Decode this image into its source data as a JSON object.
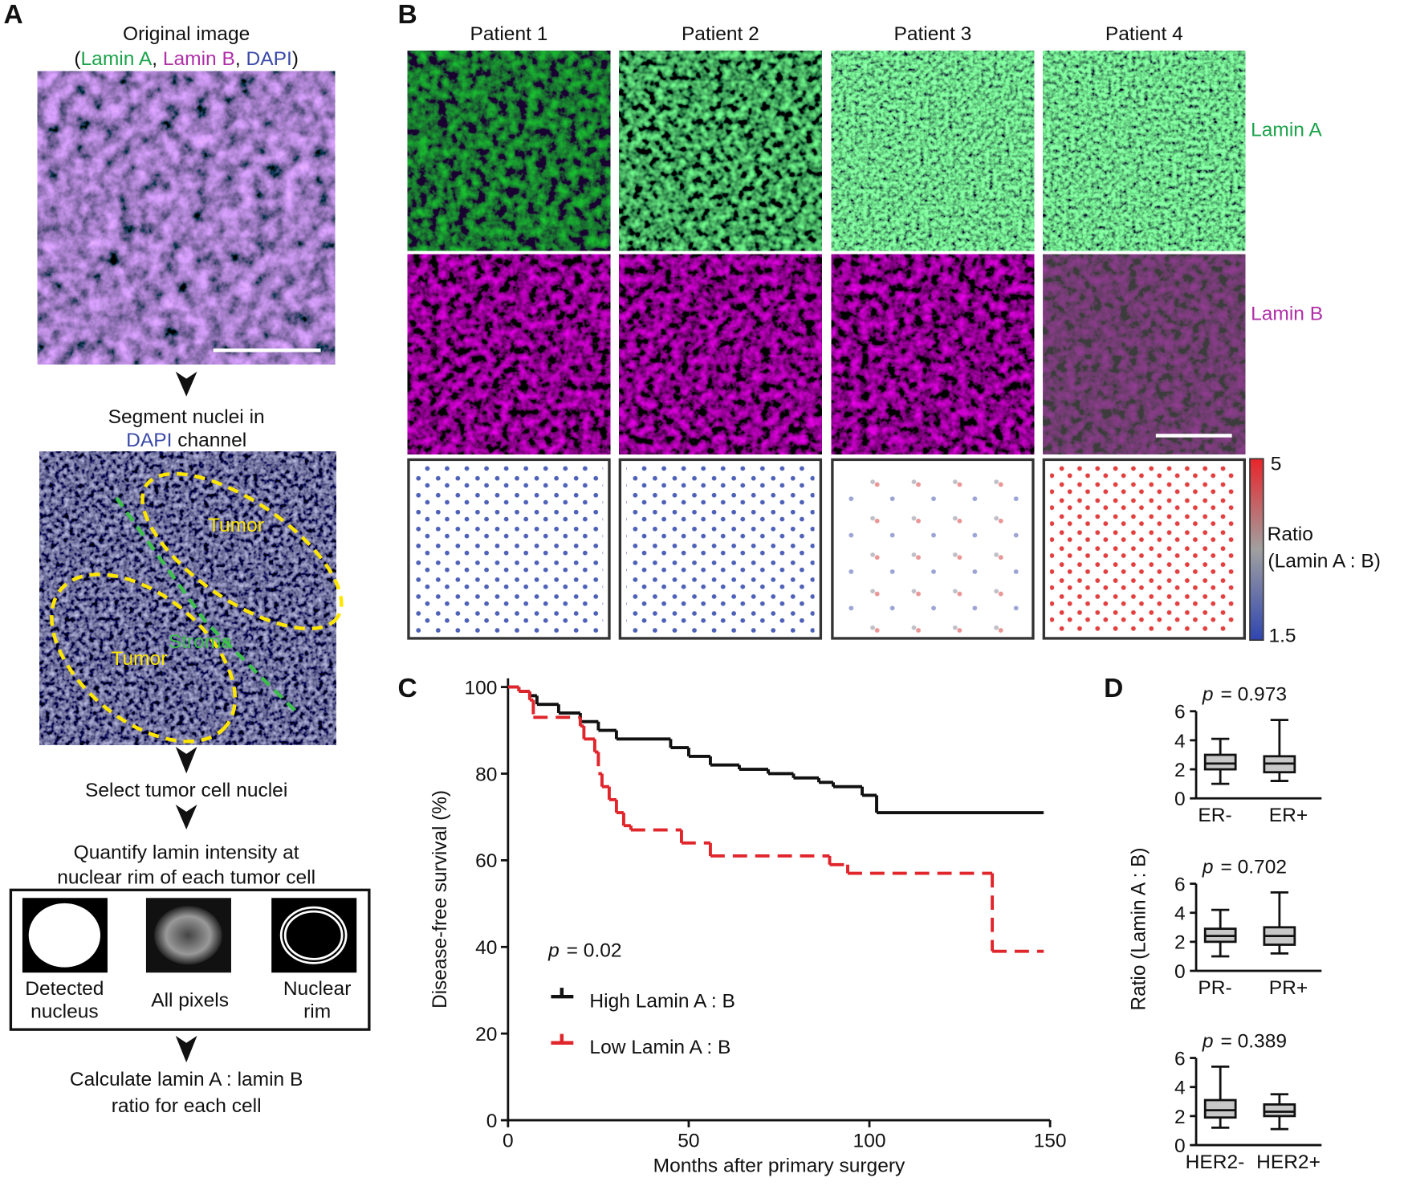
{
  "panel_a": {
    "label": "A",
    "step1": "Original image",
    "step1_channels": [
      {
        "text": "(",
        "color": "#111111"
      },
      {
        "text": "Lamin A",
        "color": "#1aa34a"
      },
      {
        "text": ", ",
        "color": "#111111"
      },
      {
        "text": "Lamin B",
        "color": "#b02fa8"
      },
      {
        "text": ", ",
        "color": "#111111"
      },
      {
        "text": "DAPI",
        "color": "#3a49a8"
      },
      {
        "text": ")",
        "color": "#111111"
      }
    ],
    "step2_line1": "Segment nuclei in",
    "step2_line2": [
      {
        "text": "DAPI",
        "color": "#3a49a8"
      },
      {
        "text": " channel",
        "color": "#111111"
      }
    ],
    "region_labels": {
      "tumor_upper": "Tumor",
      "stroma": "Stroma",
      "tumor_lower": "Tumor"
    },
    "step3": "Select tumor cell nuclei",
    "step4_line1": "Quantify lamin intensity at",
    "step4_line2": "nuclear rim of each tumor cell",
    "examples": [
      {
        "line1": "Detected",
        "line2": "nucleus"
      },
      {
        "line1": "All pixels"
      },
      {
        "line1": "Nuclear",
        "line2": "rim"
      }
    ],
    "step5_line1": "Calculate lamin A : lamin B",
    "step5_line2": "ratio for each cell"
  },
  "panel_b": {
    "label": "B",
    "patients": [
      "Patient 1",
      "Patient 2",
      "Patient 3",
      "Patient 4"
    ],
    "row_labels": [
      {
        "text": "Lamin A",
        "color": "#1aa34a"
      },
      {
        "text": "Lamin B",
        "color": "#b02fa8"
      }
    ],
    "colorbar": {
      "title": "Ratio",
      "subtitle": "(Lamin A : B)",
      "max_label": "5",
      "min_label": "1.5"
    }
  },
  "panel_c": {
    "label": "C"
  },
  "panel_d": {
    "label": "D",
    "ylabel": "Ratio (Lamin A : B)"
  },
  "chart_data": [
    {
      "type": "step",
      "xlabel": "Months after primary surgery",
      "ylabel": "Disease-free survival (%)",
      "xlim": [
        0,
        150
      ],
      "xticks": [
        0,
        50,
        100,
        150
      ],
      "ylim": [
        0,
        102
      ],
      "yticks": [
        0,
        20,
        40,
        60,
        80,
        100
      ],
      "annotation_italic": "p",
      "annotation": "= 0.02",
      "series": [
        {
          "name": "High Lamin A : B",
          "color": "#111111",
          "line_style": "solid",
          "x": [
            0,
            3,
            6,
            8,
            14,
            20,
            25,
            30,
            45,
            50,
            56,
            64,
            72,
            79,
            86,
            90,
            98,
            102,
            148
          ],
          "values": [
            100,
            99,
            98,
            96,
            94,
            92,
            90,
            88,
            86,
            84,
            82,
            81,
            80,
            79,
            78,
            77,
            75,
            71,
            71
          ]
        },
        {
          "name": "Low Lamin A : B",
          "color": "#e0252b",
          "line_style": "dashed",
          "x": [
            0,
            3,
            6,
            7,
            20,
            21,
            24,
            25,
            26,
            28,
            30,
            32,
            34,
            48,
            56,
            88,
            89,
            94,
            133,
            134,
            148
          ],
          "values": [
            100,
            99,
            97,
            93,
            91,
            88,
            85,
            80,
            77,
            74,
            71,
            68,
            67,
            64,
            61,
            61,
            59,
            57,
            57,
            39,
            39
          ]
        }
      ]
    },
    {
      "type": "box",
      "color": "#c8c8c8",
      "categories": [
        "ER-",
        "ER+"
      ],
      "ylim": [
        0,
        6
      ],
      "yticks": [
        0,
        2,
        4,
        6
      ],
      "annotation_italic": "p",
      "annotation": "= 0.973",
      "boxes": [
        {
          "min": 1.0,
          "q1": 2.0,
          "median": 2.4,
          "q3": 3.0,
          "max": 4.1
        },
        {
          "min": 1.2,
          "q1": 1.8,
          "median": 2.4,
          "q3": 2.9,
          "max": 5.4
        }
      ]
    },
    {
      "type": "box",
      "color": "#c8c8c8",
      "categories": [
        "PR-",
        "PR+"
      ],
      "ylim": [
        0,
        6
      ],
      "yticks": [
        0,
        2,
        4,
        6
      ],
      "annotation_italic": "p",
      "annotation": "= 0.702",
      "boxes": [
        {
          "min": 1.0,
          "q1": 2.0,
          "median": 2.4,
          "q3": 2.9,
          "max": 4.2
        },
        {
          "min": 1.2,
          "q1": 1.8,
          "median": 2.4,
          "q3": 3.0,
          "max": 5.4
        }
      ]
    },
    {
      "type": "box",
      "color": "#c8c8c8",
      "categories": [
        "HER2-",
        "HER2+"
      ],
      "ylim": [
        0,
        6
      ],
      "yticks": [
        0,
        2,
        4,
        6
      ],
      "annotation_italic": "p",
      "annotation": "= 0.389",
      "boxes": [
        {
          "min": 1.2,
          "q1": 1.9,
          "median": 2.4,
          "q3": 3.1,
          "max": 5.4
        },
        {
          "min": 1.1,
          "q1": 2.0,
          "median": 2.3,
          "q3": 2.8,
          "max": 3.5
        }
      ]
    }
  ]
}
